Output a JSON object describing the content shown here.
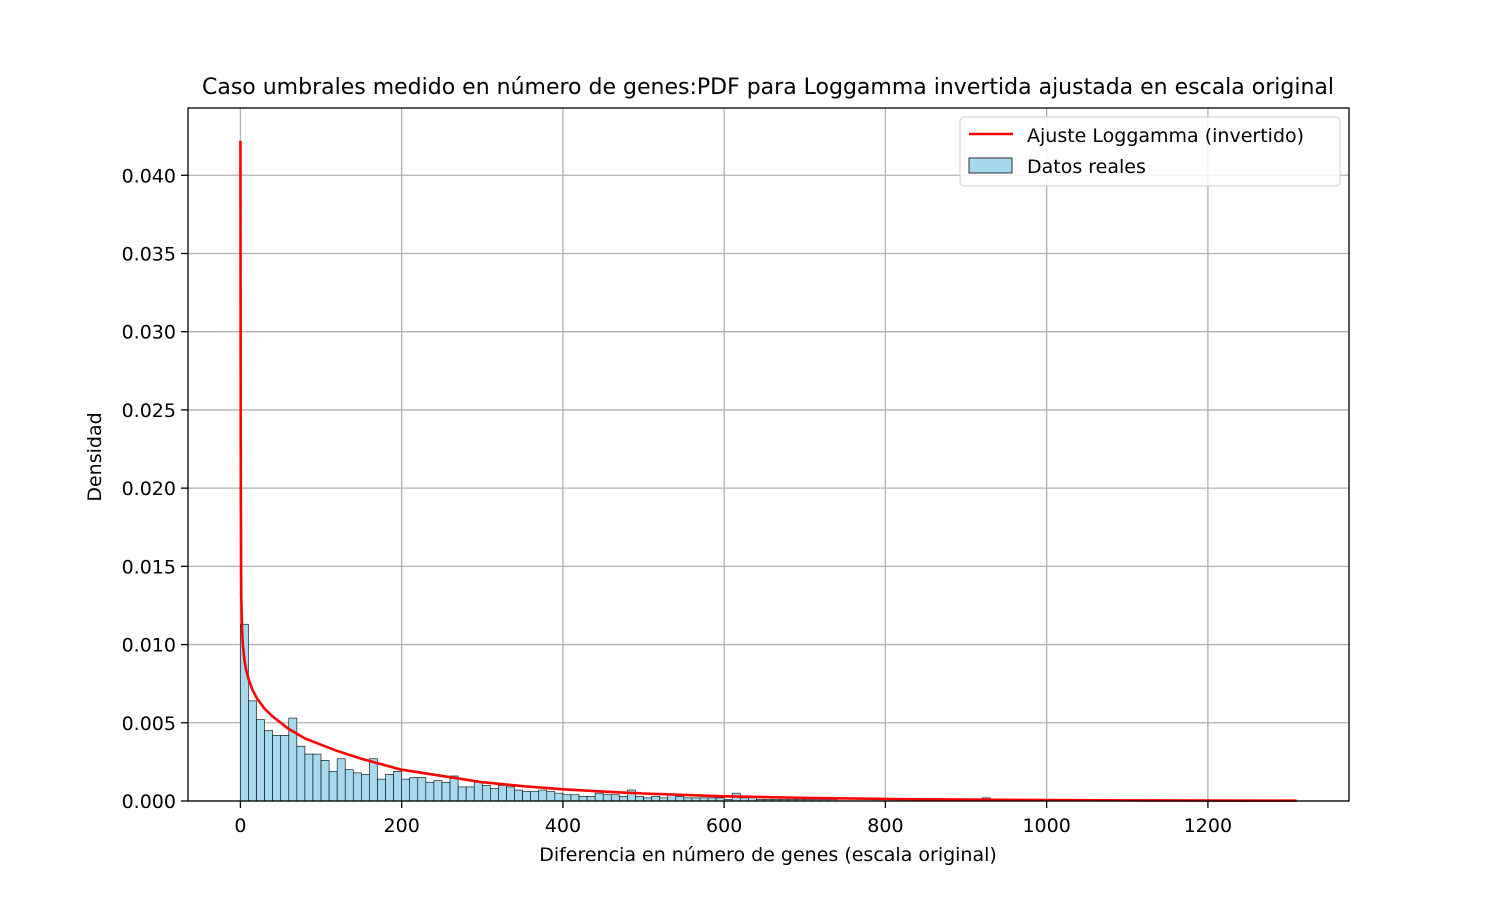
{
  "chart_data": {
    "type": "bar",
    "title": "Caso umbrales medido en número de genes:PDF para Loggamma invertida ajustada en escala original",
    "xlabel": "Diferencia en número de genes (escala original)",
    "ylabel": "Densidad",
    "xlim": [
      -65,
      1375
    ],
    "ylim": [
      0,
      0.0443
    ],
    "xticks": [
      0,
      200,
      400,
      600,
      800,
      1000,
      1200
    ],
    "xtick_labels": [
      "0",
      "200",
      "400",
      "600",
      "800",
      "1000",
      "1200"
    ],
    "yticks": [
      0,
      0.005,
      0.01,
      0.015,
      0.02,
      0.025,
      0.03,
      0.035,
      0.04
    ],
    "ytick_labels": [
      "0.000",
      "0.005",
      "0.010",
      "0.015",
      "0.020",
      "0.025",
      "0.030",
      "0.035",
      "0.040"
    ],
    "grid": true,
    "legend_position": "top-right",
    "legend": [
      {
        "label": "Ajuste Loggamma (invertido)",
        "kind": "line",
        "color": "#ff0000"
      },
      {
        "label": "Datos reales",
        "kind": "patch",
        "color": "#a6d9ee"
      }
    ],
    "histogram": {
      "name": "Datos reales",
      "color": "#a6d9ee",
      "edge_color": "#000000",
      "bin_start": 0,
      "bin_width": 10,
      "densities": [
        0.0113,
        0.0064,
        0.0052,
        0.0045,
        0.0042,
        0.0042,
        0.0053,
        0.0035,
        0.003,
        0.003,
        0.0026,
        0.0019,
        0.0027,
        0.002,
        0.0018,
        0.0017,
        0.0027,
        0.0014,
        0.0017,
        0.0019,
        0.0014,
        0.0015,
        0.0015,
        0.0012,
        0.0013,
        0.0012,
        0.0016,
        0.0009,
        0.0009,
        0.0012,
        0.001,
        0.0008,
        0.001,
        0.0009,
        0.0007,
        0.0006,
        0.0006,
        0.0007,
        0.0006,
        0.0005,
        0.0004,
        0.0004,
        0.0003,
        0.0003,
        0.0005,
        0.0004,
        0.0004,
        0.0003,
        0.0007,
        0.0003,
        0.0002,
        0.0003,
        0.0002,
        0.0004,
        0.0003,
        0.0002,
        0.0002,
        0.0002,
        0.0002,
        0.0002,
        0.0001,
        0.0005,
        0.0002,
        0.0003,
        0.0001,
        0.0001,
        0.0001,
        0.0001,
        0.0001,
        0.0001,
        0.0001,
        0.0001,
        0.0001,
        0.0001,
        0.0,
        0.0,
        0.0,
        0.0,
        0.0,
        0.0,
        0.0,
        0.0,
        0.0,
        0.0,
        0.0,
        0.0,
        0.0,
        0.0,
        0.0,
        0.0,
        0.0,
        0.0,
        0.0002,
        0.0,
        0.0,
        0.0,
        0.0,
        0.0
      ]
    },
    "series": [
      {
        "name": "Ajuste Loggamma (invertido)",
        "type": "line",
        "color": "#ff0000",
        "x": [
          0,
          0.5,
          1,
          2,
          3,
          5,
          7,
          10,
          15,
          20,
          30,
          40,
          50,
          60,
          80,
          100,
          120,
          150,
          200,
          250,
          300,
          350,
          400,
          450,
          500,
          600,
          700,
          800,
          900,
          1000,
          1100,
          1200,
          1310
        ],
        "y": [
          0.0422,
          0.02,
          0.0132,
          0.011,
          0.01,
          0.009,
          0.0084,
          0.0078,
          0.0071,
          0.0066,
          0.0059,
          0.0054,
          0.005,
          0.0046,
          0.004,
          0.0036,
          0.0032,
          0.0027,
          0.002,
          0.0016,
          0.0012,
          0.00095,
          0.00075,
          0.0006,
          0.00048,
          0.0003,
          0.0002,
          0.00013,
          9e-05,
          6e-05,
          4e-05,
          3e-05,
          2e-05
        ]
      }
    ]
  }
}
